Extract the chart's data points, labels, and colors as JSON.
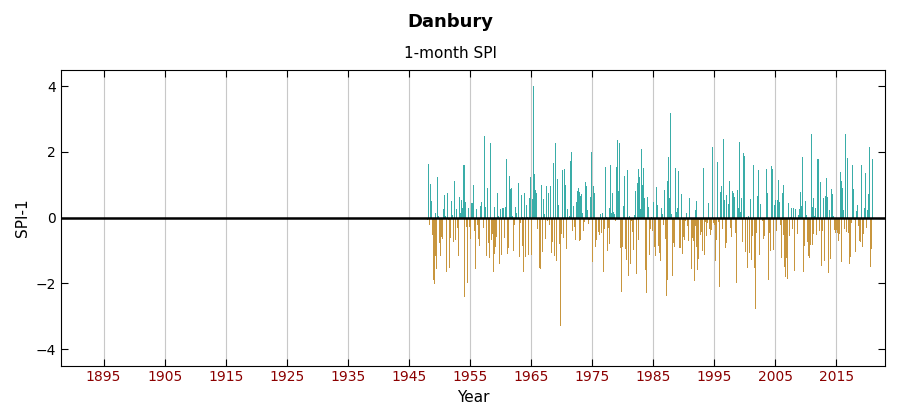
{
  "title": "Danbury",
  "subtitle": "1-month SPI",
  "ylabel": "SPI-1",
  "xlabel": "Year",
  "ylim": [
    -4.5,
    4.5
  ],
  "yticks": [
    -4,
    -2,
    0,
    2,
    4
  ],
  "xticks": [
    1895,
    1905,
    1915,
    1925,
    1935,
    1945,
    1955,
    1965,
    1975,
    1985,
    1995,
    2005,
    2015
  ],
  "xlim": [
    1888,
    2023
  ],
  "data_start_year": 1948,
  "data_end_year": 2021,
  "pos_color": "#3aada8",
  "neg_color": "#c8963e",
  "zero_line_color": "#000000",
  "grid_color": "#c8c8c8",
  "background_color": "#ffffff",
  "title_fontsize": 13,
  "subtitle_fontsize": 11,
  "axis_label_fontsize": 11,
  "tick_fontsize": 10,
  "tick_color": "#8B0000",
  "seed": 42
}
